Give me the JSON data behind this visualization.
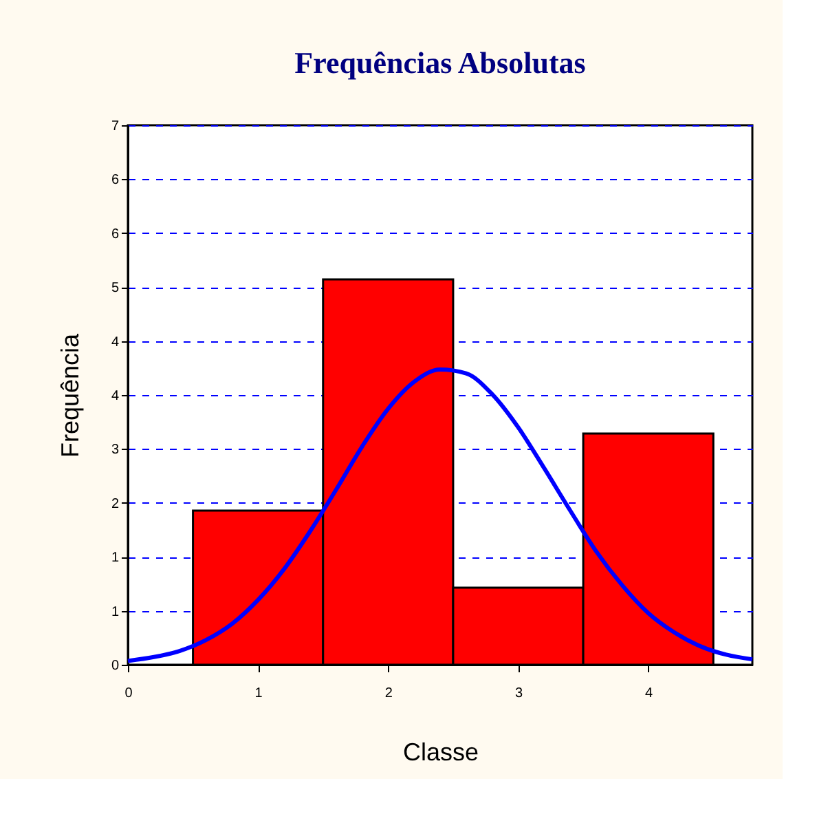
{
  "chart_data": {
    "type": "histogram",
    "title": "Frequências Absolutas",
    "xlabel": "Classe",
    "ylabel": "Frequência",
    "bins": [
      0.5,
      1.5,
      2.5,
      3.5,
      4.5
    ],
    "values": [
      2,
      5,
      1,
      3
    ],
    "color": "#ff0000",
    "series": [
      {
        "type": "line",
        "color": "#0000ff",
        "x": [
          0,
          0.2,
          0.4,
          0.6,
          0.8,
          1.0,
          1.2,
          1.4,
          1.6,
          1.8,
          2.0,
          2.2,
          2.4,
          2.6,
          2.8,
          3.0,
          3.2,
          3.4,
          3.6,
          3.8,
          4.0,
          4.2,
          4.4,
          4.6,
          4.8
        ],
        "values": [
          0.05,
          0.1,
          0.18,
          0.32,
          0.53,
          0.84,
          1.24,
          1.73,
          2.27,
          2.83,
          3.32,
          3.67,
          3.83,
          3.78,
          3.51,
          3.08,
          2.55,
          2.0,
          1.47,
          1.03,
          0.67,
          0.42,
          0.24,
          0.13,
          0.07
        ]
      }
    ],
    "xlim": [
      0,
      4.8
    ],
    "xticks": [
      0,
      1,
      2,
      3,
      4
    ],
    "ylim": [
      0,
      7
    ],
    "yticks": [
      0,
      {
        "value": 0.7,
        "label": "1"
      },
      {
        "value": 1.4,
        "label": "1"
      },
      {
        "value": 2.1,
        "label": "2"
      },
      {
        "value": 2.8,
        "label": "3"
      },
      {
        "value": 3.5,
        "label": "4"
      },
      {
        "value": 4.2,
        "label": "4"
      },
      {
        "value": 4.9,
        "label": "5"
      },
      {
        "value": 5.6,
        "label": "6"
      },
      {
        "value": 6.3,
        "label": "6"
      },
      7
    ],
    "grid": "y",
    "line_style": "solid",
    "marker": "none"
  }
}
